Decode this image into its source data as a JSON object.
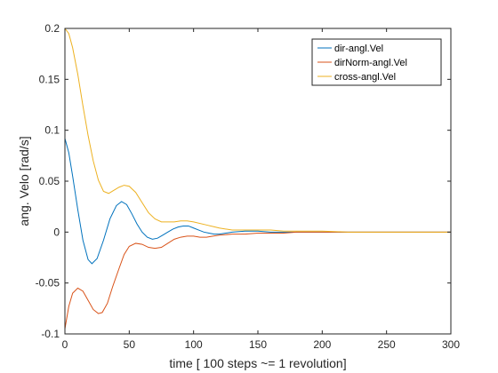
{
  "chart_data": {
    "type": "line",
    "title": "",
    "xlabel": "time [ 100 steps ~= 1 revolution]",
    "ylabel": "ang. Velo [rad/s]",
    "xlim": [
      0,
      300
    ],
    "ylim": [
      -0.1,
      0.2
    ],
    "xticks": [
      0,
      50,
      100,
      150,
      200,
      250,
      300
    ],
    "yticks": [
      -0.1,
      -0.05,
      0,
      0.05,
      0.1,
      0.15,
      0.2
    ],
    "xtick_labels": [
      "0",
      "50",
      "100",
      "150",
      "200",
      "250",
      "300"
    ],
    "ytick_labels": [
      "-0.1",
      "-0.05",
      "0",
      "0.05",
      "0.1",
      "0.15",
      "0.2"
    ],
    "grid": false,
    "legend_position": "top-right",
    "series": [
      {
        "name": "dir-angl.Vel",
        "color": "#0072BD",
        "x": [
          0,
          3,
          6,
          10,
          14,
          18,
          21,
          25,
          30,
          35,
          40,
          44,
          48,
          52,
          56,
          60,
          64,
          68,
          72,
          76,
          80,
          84,
          88,
          92,
          96,
          100,
          104,
          108,
          112,
          116,
          120,
          125,
          130,
          140,
          150,
          160,
          170,
          180,
          190,
          200,
          220,
          250,
          300
        ],
        "y": [
          0.092,
          0.078,
          0.055,
          0.022,
          -0.008,
          -0.027,
          -0.031,
          -0.026,
          -0.008,
          0.013,
          0.026,
          0.03,
          0.027,
          0.018,
          0.008,
          0.0,
          -0.005,
          -0.007,
          -0.006,
          -0.003,
          0.0,
          0.003,
          0.005,
          0.006,
          0.006,
          0.004,
          0.002,
          0.0,
          -0.001,
          -0.002,
          -0.002,
          -0.001,
          0.0,
          0.001,
          0.001,
          0.0,
          0.0,
          0.0,
          0.0,
          0.0,
          0.0,
          0.0,
          0.0
        ]
      },
      {
        "name": "dirNorm-angl.Vel",
        "color": "#D95319",
        "x": [
          0,
          3,
          6,
          10,
          14,
          18,
          22,
          26,
          29,
          33,
          37,
          42,
          46,
          50,
          55,
          60,
          65,
          70,
          75,
          80,
          85,
          90,
          95,
          100,
          105,
          110,
          115,
          120,
          130,
          140,
          150,
          160,
          170,
          180,
          190,
          200,
          220,
          250,
          300
        ],
        "y": [
          -0.095,
          -0.073,
          -0.06,
          -0.055,
          -0.058,
          -0.067,
          -0.076,
          -0.08,
          -0.079,
          -0.07,
          -0.054,
          -0.036,
          -0.022,
          -0.014,
          -0.011,
          -0.012,
          -0.015,
          -0.016,
          -0.015,
          -0.011,
          -0.007,
          -0.005,
          -0.004,
          -0.004,
          -0.005,
          -0.005,
          -0.004,
          -0.003,
          -0.002,
          -0.002,
          -0.001,
          -0.001,
          -0.001,
          0.0,
          0.0,
          0.0,
          0.0,
          0.0,
          0.0
        ]
      },
      {
        "name": "cross-angl.Vel",
        "color": "#EDB120",
        "x": [
          0,
          3,
          6,
          10,
          14,
          18,
          22,
          26,
          30,
          34,
          38,
          42,
          46,
          50,
          55,
          60,
          65,
          70,
          75,
          80,
          85,
          90,
          95,
          100,
          110,
          120,
          130,
          140,
          150,
          160,
          170,
          180,
          190,
          200,
          220,
          250,
          300
        ],
        "y": [
          0.2,
          0.195,
          0.181,
          0.155,
          0.124,
          0.095,
          0.07,
          0.051,
          0.04,
          0.038,
          0.041,
          0.044,
          0.046,
          0.045,
          0.039,
          0.029,
          0.019,
          0.013,
          0.01,
          0.01,
          0.01,
          0.011,
          0.011,
          0.01,
          0.007,
          0.004,
          0.002,
          0.002,
          0.002,
          0.002,
          0.001,
          0.001,
          0.001,
          0.001,
          0.0,
          0.0,
          0.0
        ]
      }
    ]
  }
}
